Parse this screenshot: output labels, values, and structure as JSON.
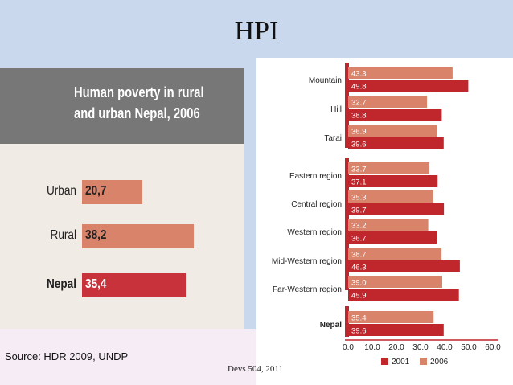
{
  "slide": {
    "title": "HPI",
    "source": "Source: HDR 2009, UNDP",
    "footer": "Devs 504, 2011"
  },
  "chart_data": [
    {
      "type": "bar",
      "orientation": "horizontal",
      "title": "Human poverty in rural and urban Nepal, 2006",
      "title_lines": [
        "Human poverty in rural",
        "and urban Nepal, 2006"
      ],
      "categories": [
        "Urban",
        "Rural",
        "Nepal"
      ],
      "values": [
        20.7,
        38.2,
        35.4
      ],
      "value_labels": [
        "20,7",
        "38,2",
        "35,4"
      ],
      "xlim": [
        0,
        40
      ],
      "colors": {
        "default": "#d9836b",
        "highlight": "#c8323a"
      }
    },
    {
      "type": "bar",
      "orientation": "horizontal",
      "categories": [
        "Mountain",
        "Hill",
        "Tarai",
        "Eastern region",
        "Central region",
        "Western region",
        "Mid-Western region",
        "Far-Western region",
        "Nepal"
      ],
      "bold_categories": [
        "Nepal"
      ],
      "series": [
        {
          "name": "2006",
          "values": [
            43.3,
            32.7,
            36.9,
            33.7,
            35.3,
            33.2,
            38.7,
            39.0,
            35.4
          ],
          "labels": [
            "43.3",
            "32.7",
            "36.9",
            "33.7",
            "35.3",
            "33.2",
            "38.7",
            "39.0",
            "35.4"
          ],
          "color": "#d9836b"
        },
        {
          "name": "2001",
          "values": [
            49.8,
            38.8,
            39.6,
            37.1,
            39.7,
            36.7,
            46.3,
            45.9,
            39.6
          ],
          "labels": [
            "49.8",
            "38.8",
            "39.6",
            "37.1",
            "39.7",
            "36.7",
            "46.3",
            "45.9",
            "39.6"
          ],
          "color": "#c0272d"
        }
      ],
      "xlim": [
        0,
        60
      ],
      "xticks": [
        "0.0",
        "10.0",
        "20.0",
        "30.0",
        "40.0",
        "50.0",
        "60.0"
      ],
      "legend": [
        "2001",
        "2006"
      ],
      "legend_placement": "bottom"
    }
  ]
}
